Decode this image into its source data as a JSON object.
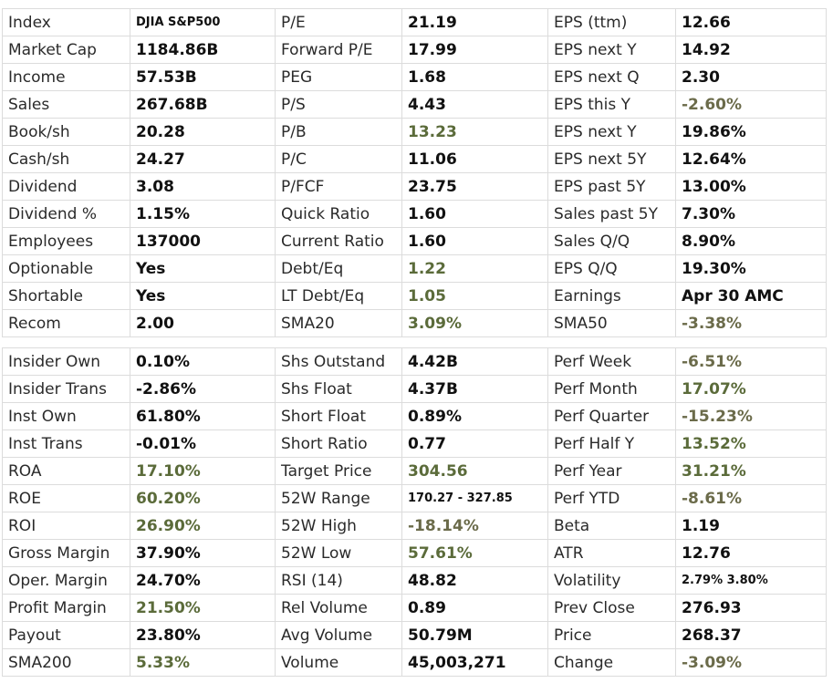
{
  "colors": {
    "positive": "#5b6b3a",
    "negative": "#6b6b4a",
    "default": "#111111",
    "border": "#dcdcdc"
  },
  "tables": [
    {
      "name": "fundamentals-top",
      "rows": [
        [
          [
            "Index",
            "DJIA S&P500",
            "small"
          ],
          [
            "P/E",
            "21.19",
            ""
          ],
          [
            "EPS (ttm)",
            "12.66",
            ""
          ]
        ],
        [
          [
            "Market Cap",
            "1184.86B",
            ""
          ],
          [
            "Forward P/E",
            "17.99",
            ""
          ],
          [
            "EPS next Y",
            "14.92",
            ""
          ]
        ],
        [
          [
            "Income",
            "57.53B",
            ""
          ],
          [
            "PEG",
            "1.68",
            ""
          ],
          [
            "EPS next Q",
            "2.30",
            ""
          ]
        ],
        [
          [
            "Sales",
            "267.68B",
            ""
          ],
          [
            "P/S",
            "4.43",
            ""
          ],
          [
            "EPS this Y",
            "-2.60%",
            "neg"
          ]
        ],
        [
          [
            "Book/sh",
            "20.28",
            ""
          ],
          [
            "P/B",
            "13.23",
            "pos"
          ],
          [
            "EPS next Y",
            "19.86%",
            ""
          ]
        ],
        [
          [
            "Cash/sh",
            "24.27",
            ""
          ],
          [
            "P/C",
            "11.06",
            ""
          ],
          [
            "EPS next 5Y",
            "12.64%",
            ""
          ]
        ],
        [
          [
            "Dividend",
            "3.08",
            ""
          ],
          [
            "P/FCF",
            "23.75",
            ""
          ],
          [
            "EPS past 5Y",
            "13.00%",
            ""
          ]
        ],
        [
          [
            "Dividend %",
            "1.15%",
            ""
          ],
          [
            "Quick Ratio",
            "1.60",
            ""
          ],
          [
            "Sales past 5Y",
            "7.30%",
            ""
          ]
        ],
        [
          [
            "Employees",
            "137000",
            ""
          ],
          [
            "Current Ratio",
            "1.60",
            ""
          ],
          [
            "Sales Q/Q",
            "8.90%",
            ""
          ]
        ],
        [
          [
            "Optionable",
            "Yes",
            ""
          ],
          [
            "Debt/Eq",
            "1.22",
            "pos"
          ],
          [
            "EPS Q/Q",
            "19.30%",
            ""
          ]
        ],
        [
          [
            "Shortable",
            "Yes",
            ""
          ],
          [
            "LT Debt/Eq",
            "1.05",
            "pos"
          ],
          [
            "Earnings",
            "Apr 30 AMC",
            ""
          ]
        ],
        [
          [
            "Recom",
            "2.00",
            ""
          ],
          [
            "SMA20",
            "3.09%",
            "pos"
          ],
          [
            "SMA50",
            "-3.38%",
            "neg"
          ]
        ]
      ]
    },
    {
      "name": "fundamentals-bottom",
      "rows": [
        [
          [
            "Insider Own",
            "0.10%",
            ""
          ],
          [
            "Shs Outstand",
            "4.42B",
            ""
          ],
          [
            "Perf Week",
            "-6.51%",
            "neg"
          ]
        ],
        [
          [
            "Insider Trans",
            "-2.86%",
            ""
          ],
          [
            "Shs Float",
            "4.37B",
            ""
          ],
          [
            "Perf Month",
            "17.07%",
            "pos"
          ]
        ],
        [
          [
            "Inst Own",
            "61.80%",
            ""
          ],
          [
            "Short Float",
            "0.89%",
            ""
          ],
          [
            "Perf Quarter",
            "-15.23%",
            "neg"
          ]
        ],
        [
          [
            "Inst Trans",
            "-0.01%",
            ""
          ],
          [
            "Short Ratio",
            "0.77",
            ""
          ],
          [
            "Perf Half Y",
            "13.52%",
            "pos"
          ]
        ],
        [
          [
            "ROA",
            "17.10%",
            "pos"
          ],
          [
            "Target Price",
            "304.56",
            "pos"
          ],
          [
            "Perf Year",
            "31.21%",
            "pos"
          ]
        ],
        [
          [
            "ROE",
            "60.20%",
            "pos"
          ],
          [
            "52W Range",
            "170.27 - 327.85",
            "small"
          ],
          [
            "Perf YTD",
            "-8.61%",
            "neg"
          ]
        ],
        [
          [
            "ROI",
            "26.90%",
            "pos"
          ],
          [
            "52W High",
            "-18.14%",
            "neg"
          ],
          [
            "Beta",
            "1.19",
            ""
          ]
        ],
        [
          [
            "Gross Margin",
            "37.90%",
            ""
          ],
          [
            "52W Low",
            "57.61%",
            "pos"
          ],
          [
            "ATR",
            "12.76",
            ""
          ]
        ],
        [
          [
            "Oper. Margin",
            "24.70%",
            ""
          ],
          [
            "RSI (14)",
            "48.82",
            ""
          ],
          [
            "Volatility",
            "2.79% 3.80%",
            "small"
          ]
        ],
        [
          [
            "Profit Margin",
            "21.50%",
            "pos"
          ],
          [
            "Rel Volume",
            "0.89",
            ""
          ],
          [
            "Prev Close",
            "276.93",
            ""
          ]
        ],
        [
          [
            "Payout",
            "23.80%",
            ""
          ],
          [
            "Avg Volume",
            "50.79M",
            ""
          ],
          [
            "Price",
            "268.37",
            ""
          ]
        ],
        [
          [
            "SMA200",
            "5.33%",
            "pos"
          ],
          [
            "Volume",
            "45,003,271",
            ""
          ],
          [
            "Change",
            "-3.09%",
            "neg"
          ]
        ]
      ]
    }
  ]
}
